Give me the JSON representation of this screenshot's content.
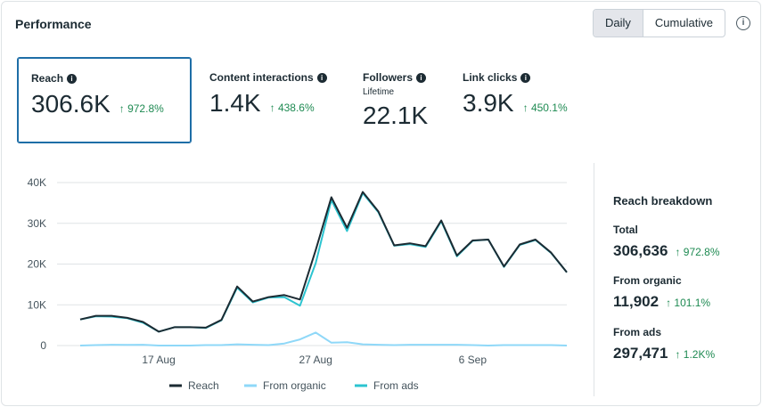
{
  "header": {
    "title": "Performance",
    "toggle": {
      "daily_label": "Daily",
      "cumulative_label": "Cumulative",
      "selected": "Daily"
    },
    "info_icon": "info-icon"
  },
  "metrics": [
    {
      "label": "Reach",
      "sublabel": "",
      "value": "306.6K",
      "change": "↑ 972.8%",
      "selected": true
    },
    {
      "label": "Content interactions",
      "sublabel": "",
      "value": "1.4K",
      "change": "↑ 438.6%"
    },
    {
      "label": "Followers",
      "sublabel": "Lifetime",
      "value": "22.1K",
      "change": ""
    },
    {
      "label": "Link clicks",
      "sublabel": "",
      "value": "3.9K",
      "change": "↑ 450.1%"
    }
  ],
  "breakdown": {
    "title": "Reach breakdown",
    "items": [
      {
        "label": "Total",
        "value": "306,636",
        "change": "↑ 972.8%"
      },
      {
        "label": "From organic",
        "value": "11,902",
        "change": "↑ 101.1%"
      },
      {
        "label": "From ads",
        "value": "297,471",
        "change": "↑ 1.2K%"
      }
    ]
  },
  "colors": {
    "reach": "#1c2b33",
    "organic": "#8fd8f8",
    "ads": "#2cc4d0",
    "up": "#1e8a52",
    "grid": "#dfe3e6"
  },
  "chart_data": {
    "type": "line",
    "ylim": [
      0,
      40000
    ],
    "yticks": [
      0,
      10000,
      20000,
      30000,
      40000
    ],
    "ytick_labels": [
      "0",
      "10K",
      "20K",
      "30K",
      "40K"
    ],
    "x_count": 32,
    "xticks": [
      {
        "index": 5,
        "label": "17 Aug"
      },
      {
        "index": 15,
        "label": "27 Aug"
      },
      {
        "index": 25,
        "label": "6 Sep"
      }
    ],
    "series": [
      {
        "name": "Reach",
        "color": "#1c2b33",
        "values": [
          6400,
          7300,
          7300,
          6800,
          5800,
          3400,
          4500,
          4500,
          4400,
          6300,
          14500,
          10800,
          11900,
          12400,
          11300,
          23400,
          36400,
          28900,
          37700,
          32900,
          24600,
          25100,
          24400,
          30700,
          22100,
          25800,
          26000,
          19400,
          24800,
          26000,
          22800,
          18000
        ]
      },
      {
        "name": "From organic",
        "color": "#8fd8f8",
        "values": [
          0,
          100,
          200,
          150,
          200,
          0,
          0,
          0,
          100,
          100,
          300,
          200,
          100,
          500,
          1500,
          3200,
          700,
          800,
          300,
          200,
          100,
          200,
          200,
          200,
          200,
          100,
          0,
          100,
          100,
          100,
          100,
          0
        ]
      },
      {
        "name": "From ads",
        "color": "#2cc4d0",
        "values": [
          6400,
          7200,
          7100,
          6700,
          5600,
          3400,
          4500,
          4500,
          4300,
          6200,
          14200,
          10600,
          11800,
          11900,
          9800,
          20200,
          35700,
          28100,
          37400,
          32700,
          24500,
          24900,
          24200,
          30500,
          21900,
          25700,
          26000,
          19300,
          24700,
          25900,
          22700,
          18000
        ]
      }
    ]
  }
}
